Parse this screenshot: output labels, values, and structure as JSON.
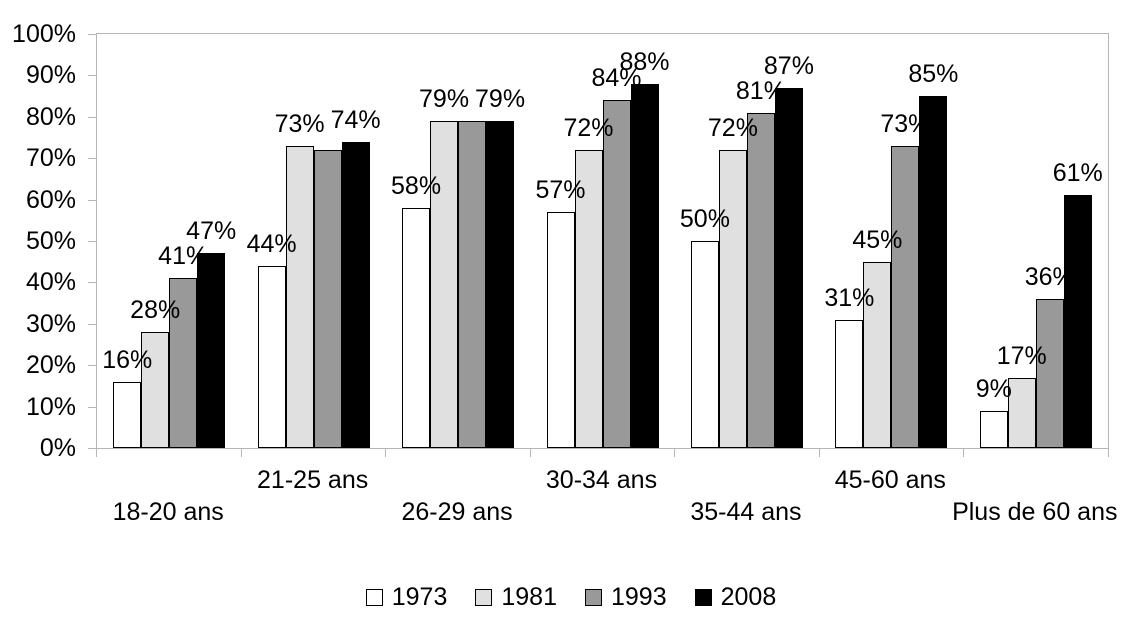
{
  "chart_data": {
    "type": "bar",
    "title": "",
    "xlabel": "",
    "ylabel": "",
    "categories": [
      "18-20 ans",
      "21-25 ans",
      "26-29 ans",
      "30-34 ans",
      "35-44 ans",
      "45-60 ans",
      "Plus de 60 ans"
    ],
    "series": [
      {
        "name": "1973",
        "fill": "#ffffff",
        "values": [
          16,
          44,
          58,
          57,
          50,
          31,
          9
        ],
        "labels": [
          "16%",
          "44%",
          "58%",
          "57%",
          "50%",
          "31%",
          "9%"
        ]
      },
      {
        "name": "1981",
        "fill": "#e0e0e0",
        "values": [
          28,
          73,
          79,
          72,
          72,
          45,
          17
        ],
        "labels": [
          "28%",
          "73%",
          "79%",
          "72%",
          "72%",
          "45%",
          "17%"
        ]
      },
      {
        "name": "1993",
        "fill": "#999999",
        "values": [
          41,
          72,
          79,
          84,
          81,
          73,
          36
        ],
        "labels": [
          "41%",
          null,
          null,
          "84%",
          "81%",
          "73%",
          "36%"
        ]
      },
      {
        "name": "2008",
        "fill": "#000000",
        "values": [
          47,
          74,
          79,
          88,
          87,
          85,
          61
        ],
        "labels": [
          "47%",
          "74%",
          "79%",
          "88%",
          "87%",
          "85%",
          "61%"
        ]
      }
    ],
    "y_axis": {
      "min": 0,
      "max": 100,
      "step": 10,
      "tick_labels": [
        "0%",
        "10%",
        "20%",
        "30%",
        "40%",
        "50%",
        "60%",
        "70%",
        "80%",
        "90%",
        "100%"
      ]
    },
    "grid": false,
    "legend": {
      "position": "bottom",
      "entries": [
        "1973",
        "1981",
        "1993",
        "2008"
      ]
    },
    "colors": {
      "bar_border": "#000000",
      "axis_line": "#b6b6b6",
      "text": "#000000",
      "background": "#ffffff"
    }
  }
}
